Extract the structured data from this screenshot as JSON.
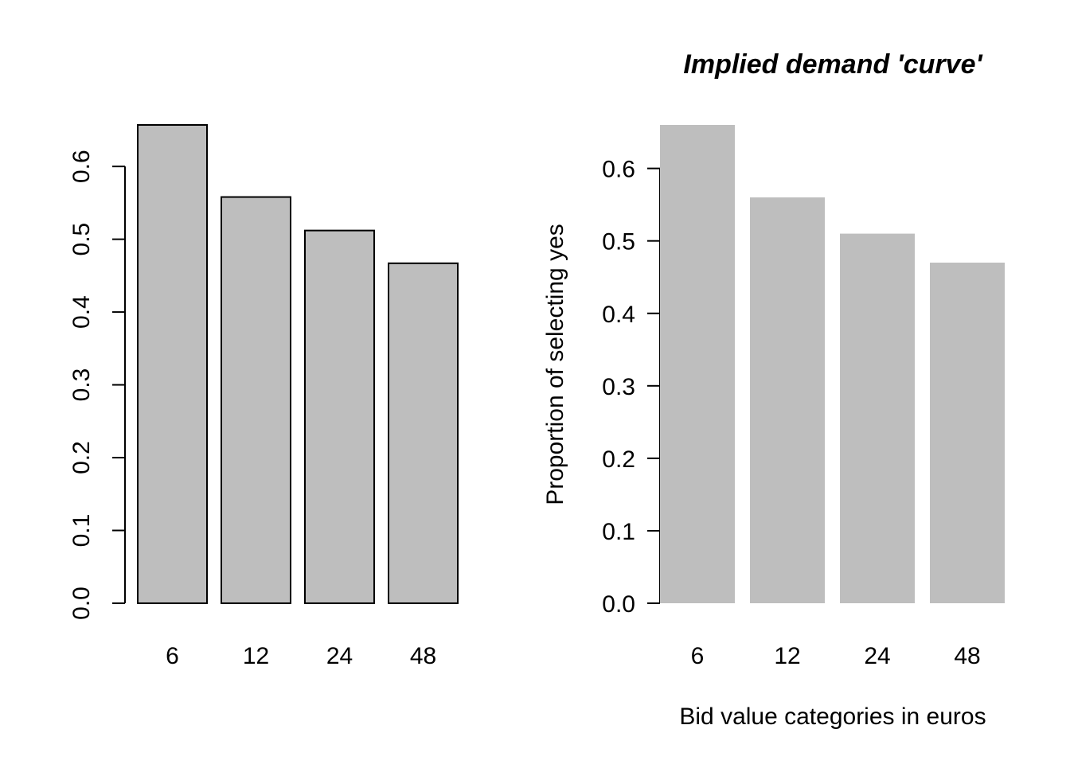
{
  "chart_data": [
    {
      "type": "bar",
      "categories": [
        "6",
        "12",
        "24",
        "48"
      ],
      "values": [
        0.657,
        0.558,
        0.512,
        0.467
      ],
      "title": "",
      "xlabel": "",
      "ylabel": "",
      "ylim": [
        0,
        0.657
      ],
      "yticks": [
        "0.0",
        "0.1",
        "0.2",
        "0.3",
        "0.4",
        "0.5",
        "0.6"
      ],
      "bar_color": "#bebebe",
      "bar_border": true,
      "y_tick_rotation": "vertical"
    },
    {
      "type": "bar",
      "categories": [
        "6",
        "12",
        "24",
        "48"
      ],
      "values": [
        0.66,
        0.56,
        0.51,
        0.47
      ],
      "title": "Implied demand 'curve'",
      "xlabel": "Bid value categories in euros",
      "ylabel": "Proportion of selecting yes",
      "ylim": [
        0,
        0.66
      ],
      "yticks": [
        "0.0",
        "0.1",
        "0.2",
        "0.3",
        "0.4",
        "0.5",
        "0.6"
      ],
      "bar_color": "#bebebe",
      "bar_border": false,
      "y_tick_rotation": "horizontal"
    }
  ]
}
